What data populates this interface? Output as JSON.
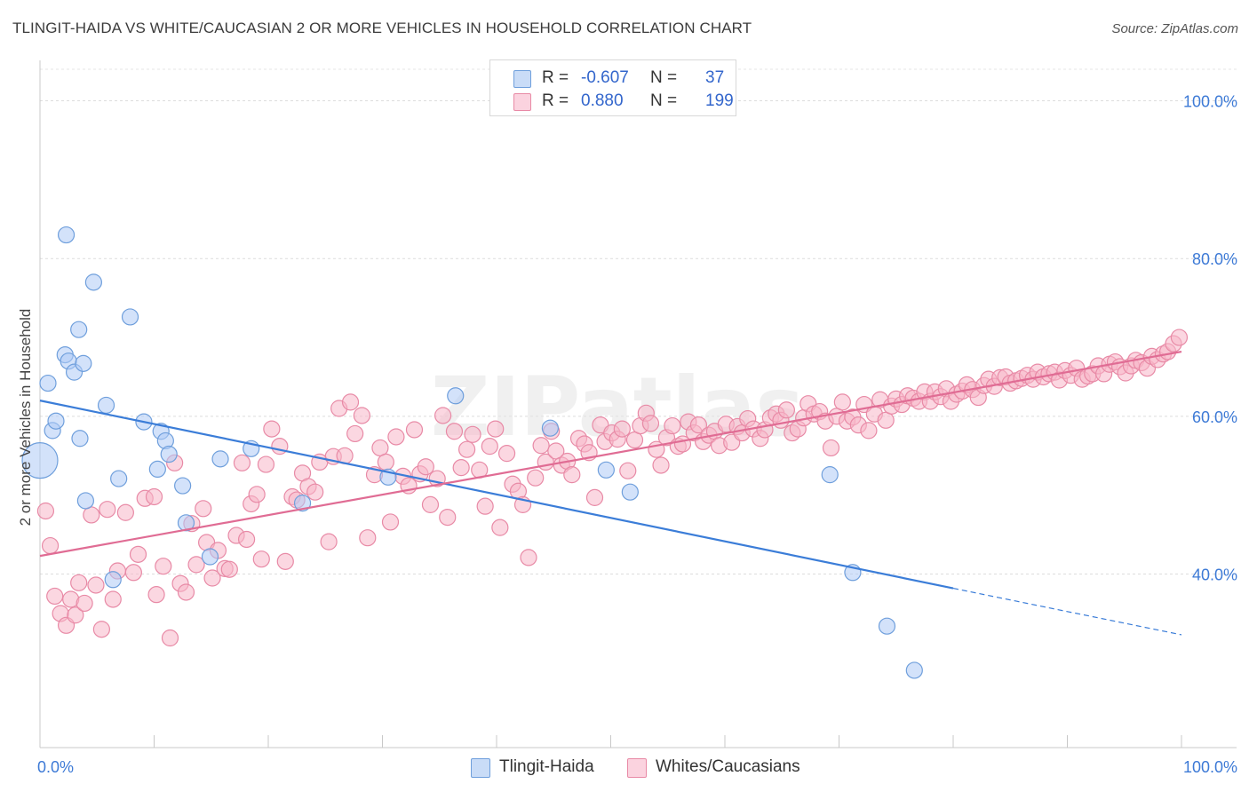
{
  "title": "TLINGIT-HAIDA VS WHITE/CAUCASIAN 2 OR MORE VEHICLES IN HOUSEHOLD CORRELATION CHART",
  "source": "Source: ZipAtlas.com",
  "watermark": "ZIPatlas",
  "legend": {
    "rows": [
      {
        "r_label": "R =",
        "r_value": "-0.607",
        "n_label": "N =",
        "n_value": "37",
        "color": "#aecbf5"
      },
      {
        "r_label": "R =",
        "r_value": "0.880",
        "n_label": "N =",
        "n_value": "199",
        "color": "#f7b6c8"
      }
    ]
  },
  "chart_data": {
    "type": "scatter",
    "xlabel": "",
    "ylabel": "2 or more Vehicles in Household",
    "xlim": [
      0,
      100
    ],
    "ylim": [
      18,
      104
    ],
    "x_tick_labels": [
      {
        "value": 0,
        "label": "0.0%"
      },
      {
        "value": 100,
        "label": "100.0%"
      }
    ],
    "y_tick_labels": [
      {
        "value": 40,
        "label": "40.0%"
      },
      {
        "value": 60,
        "label": "60.0%"
      },
      {
        "value": 80,
        "label": "80.0%"
      },
      {
        "value": 100,
        "label": "100.0%"
      }
    ],
    "grid": true,
    "legend_position": "bottom",
    "series": [
      {
        "name": "Tlingit-Haida",
        "color": "#aecbf5",
        "stroke": "#6f9fdc",
        "line_color": "#3b7dd8",
        "trend": {
          "x0": 0,
          "y0": 62.0,
          "x1": 80,
          "y1": 38.2,
          "dash_to": 100,
          "dash_y": 32.3
        },
        "points": [
          [
            0,
            54.4
          ],
          [
            0.7,
            64.2
          ],
          [
            1.1,
            58.2
          ],
          [
            1.4,
            59.4
          ],
          [
            2.2,
            67.8
          ],
          [
            2.3,
            83.0
          ],
          [
            2.5,
            67.0
          ],
          [
            3.0,
            65.6
          ],
          [
            3.4,
            71.0
          ],
          [
            3.5,
            57.2
          ],
          [
            3.8,
            66.7
          ],
          [
            4.0,
            49.3
          ],
          [
            4.7,
            77.0
          ],
          [
            5.8,
            61.4
          ],
          [
            6.9,
            52.1
          ],
          [
            7.9,
            72.6
          ],
          [
            9.1,
            59.3
          ],
          [
            10.3,
            53.3
          ],
          [
            10.6,
            58.1
          ],
          [
            11.0,
            56.9
          ],
          [
            11.3,
            55.2
          ],
          [
            12.5,
            51.2
          ],
          [
            12.8,
            46.5
          ],
          [
            14.9,
            42.2
          ],
          [
            15.8,
            54.6
          ],
          [
            18.5,
            55.9
          ],
          [
            23.0,
            49.0
          ],
          [
            30.5,
            52.3
          ],
          [
            36.4,
            62.6
          ],
          [
            44.7,
            58.5
          ],
          [
            49.6,
            53.2
          ],
          [
            51.7,
            50.4
          ],
          [
            69.2,
            52.6
          ],
          [
            71.2,
            40.2
          ],
          [
            74.2,
            33.4
          ],
          [
            76.6,
            27.8
          ],
          [
            6.4,
            39.3
          ]
        ]
      },
      {
        "name": "Whites/Caucasians",
        "color": "#f7b6c8",
        "stroke": "#e88aa6",
        "line_color": "#e06c94",
        "trend": {
          "x0": 0,
          "y0": 42.3,
          "x1": 100,
          "y1": 68.2
        },
        "points": [
          [
            0.5,
            48.0
          ],
          [
            0.9,
            43.6
          ],
          [
            1.3,
            37.2
          ],
          [
            1.8,
            35.0
          ],
          [
            2.3,
            33.5
          ],
          [
            2.7,
            36.8
          ],
          [
            3.1,
            34.8
          ],
          [
            3.4,
            38.9
          ],
          [
            3.9,
            36.3
          ],
          [
            4.5,
            47.5
          ],
          [
            4.9,
            38.6
          ],
          [
            5.4,
            33.0
          ],
          [
            5.9,
            48.2
          ],
          [
            6.4,
            36.8
          ],
          [
            6.8,
            40.4
          ],
          [
            7.5,
            47.8
          ],
          [
            8.2,
            40.2
          ],
          [
            8.6,
            42.5
          ],
          [
            9.2,
            49.6
          ],
          [
            10.0,
            49.8
          ],
          [
            10.2,
            37.4
          ],
          [
            10.8,
            41.0
          ],
          [
            11.4,
            31.9
          ],
          [
            11.8,
            54.1
          ],
          [
            12.3,
            38.8
          ],
          [
            12.8,
            37.7
          ],
          [
            13.3,
            46.4
          ],
          [
            13.7,
            41.2
          ],
          [
            14.3,
            48.3
          ],
          [
            14.6,
            44.0
          ],
          [
            15.1,
            39.5
          ],
          [
            15.6,
            43.0
          ],
          [
            16.2,
            40.7
          ],
          [
            16.6,
            40.6
          ],
          [
            17.2,
            44.9
          ],
          [
            17.7,
            54.1
          ],
          [
            18.1,
            44.4
          ],
          [
            18.5,
            48.9
          ],
          [
            19.0,
            50.1
          ],
          [
            19.4,
            41.9
          ],
          [
            19.8,
            53.9
          ],
          [
            20.3,
            58.4
          ],
          [
            21.0,
            56.2
          ],
          [
            21.5,
            41.6
          ],
          [
            22.1,
            49.8
          ],
          [
            22.5,
            49.4
          ],
          [
            23.0,
            52.8
          ],
          [
            23.5,
            51.1
          ],
          [
            24.1,
            50.4
          ],
          [
            24.5,
            54.2
          ],
          [
            25.3,
            44.1
          ],
          [
            25.7,
            54.9
          ],
          [
            26.2,
            61.0
          ],
          [
            26.7,
            55.0
          ],
          [
            27.2,
            61.8
          ],
          [
            27.6,
            57.8
          ],
          [
            28.2,
            60.1
          ],
          [
            28.7,
            44.6
          ],
          [
            29.3,
            52.6
          ],
          [
            29.8,
            56.0
          ],
          [
            30.3,
            54.2
          ],
          [
            30.7,
            46.6
          ],
          [
            31.2,
            57.4
          ],
          [
            31.8,
            52.4
          ],
          [
            32.3,
            51.2
          ],
          [
            32.8,
            58.3
          ],
          [
            33.3,
            52.7
          ],
          [
            33.8,
            53.6
          ],
          [
            34.2,
            48.8
          ],
          [
            34.8,
            52.1
          ],
          [
            35.3,
            60.1
          ],
          [
            35.7,
            47.2
          ],
          [
            36.3,
            58.1
          ],
          [
            36.9,
            53.5
          ],
          [
            37.4,
            55.8
          ],
          [
            37.9,
            57.7
          ],
          [
            38.5,
            53.2
          ],
          [
            39.0,
            48.6
          ],
          [
            39.4,
            56.2
          ],
          [
            39.9,
            58.4
          ],
          [
            40.3,
            45.9
          ],
          [
            40.9,
            55.3
          ],
          [
            41.4,
            51.4
          ],
          [
            41.9,
            50.5
          ],
          [
            42.3,
            48.8
          ],
          [
            42.8,
            42.1
          ],
          [
            43.4,
            52.2
          ],
          [
            43.9,
            56.3
          ],
          [
            44.3,
            54.2
          ],
          [
            44.8,
            58.1
          ],
          [
            45.2,
            55.6
          ],
          [
            45.7,
            53.8
          ],
          [
            46.2,
            54.3
          ],
          [
            46.6,
            52.6
          ],
          [
            47.2,
            57.2
          ],
          [
            47.7,
            56.5
          ],
          [
            48.1,
            55.4
          ],
          [
            48.6,
            49.7
          ],
          [
            49.1,
            58.9
          ],
          [
            49.5,
            56.8
          ],
          [
            50.1,
            57.9
          ],
          [
            50.6,
            57.1
          ],
          [
            51.0,
            58.4
          ],
          [
            51.5,
            53.1
          ],
          [
            52.1,
            57.0
          ],
          [
            52.6,
            58.8
          ],
          [
            53.1,
            60.4
          ],
          [
            53.5,
            59.1
          ],
          [
            54.0,
            55.8
          ],
          [
            54.4,
            53.8
          ],
          [
            54.9,
            57.3
          ],
          [
            55.4,
            58.8
          ],
          [
            55.9,
            56.2
          ],
          [
            56.3,
            56.5
          ],
          [
            56.8,
            59.3
          ],
          [
            57.3,
            57.9
          ],
          [
            57.7,
            58.9
          ],
          [
            58.1,
            56.8
          ],
          [
            58.6,
            57.6
          ],
          [
            59.1,
            58.1
          ],
          [
            59.5,
            56.3
          ],
          [
            60.1,
            59.0
          ],
          [
            60.6,
            56.7
          ],
          [
            61.1,
            58.7
          ],
          [
            61.5,
            57.9
          ],
          [
            62.0,
            59.7
          ],
          [
            62.5,
            58.4
          ],
          [
            63.1,
            57.2
          ],
          [
            63.5,
            58.3
          ],
          [
            64.0,
            59.8
          ],
          [
            64.5,
            60.3
          ],
          [
            64.9,
            59.5
          ],
          [
            65.4,
            60.8
          ],
          [
            65.9,
            57.9
          ],
          [
            66.4,
            58.4
          ],
          [
            66.9,
            59.8
          ],
          [
            67.3,
            61.6
          ],
          [
            67.8,
            60.3
          ],
          [
            68.3,
            60.6
          ],
          [
            68.8,
            59.4
          ],
          [
            69.3,
            56.0
          ],
          [
            69.8,
            60.0
          ],
          [
            70.3,
            61.8
          ],
          [
            70.7,
            59.4
          ],
          [
            71.2,
            59.9
          ],
          [
            71.7,
            58.9
          ],
          [
            72.2,
            61.5
          ],
          [
            72.6,
            58.2
          ],
          [
            73.1,
            60.3
          ],
          [
            73.6,
            62.1
          ],
          [
            74.1,
            59.5
          ],
          [
            74.6,
            61.3
          ],
          [
            75.0,
            62.2
          ],
          [
            75.5,
            61.5
          ],
          [
            76.0,
            62.6
          ],
          [
            76.5,
            62.3
          ],
          [
            77.0,
            61.9
          ],
          [
            77.5,
            63.1
          ],
          [
            78.0,
            61.9
          ],
          [
            78.4,
            63.1
          ],
          [
            78.9,
            62.5
          ],
          [
            79.4,
            63.5
          ],
          [
            79.8,
            61.9
          ],
          [
            80.3,
            62.8
          ],
          [
            80.8,
            63.2
          ],
          [
            81.2,
            64.0
          ],
          [
            81.7,
            63.4
          ],
          [
            82.2,
            62.4
          ],
          [
            82.7,
            63.9
          ],
          [
            83.1,
            64.7
          ],
          [
            83.6,
            63.8
          ],
          [
            84.1,
            64.9
          ],
          [
            84.6,
            65.0
          ],
          [
            85.0,
            64.2
          ],
          [
            85.5,
            64.5
          ],
          [
            86.0,
            64.8
          ],
          [
            86.5,
            65.2
          ],
          [
            87.0,
            64.7
          ],
          [
            87.4,
            65.6
          ],
          [
            87.9,
            65.0
          ],
          [
            88.4,
            65.4
          ],
          [
            88.9,
            65.6
          ],
          [
            89.3,
            64.6
          ],
          [
            89.8,
            65.8
          ],
          [
            90.3,
            65.2
          ],
          [
            90.8,
            66.1
          ],
          [
            91.3,
            64.7
          ],
          [
            91.8,
            65.1
          ],
          [
            92.2,
            65.4
          ],
          [
            92.7,
            66.4
          ],
          [
            93.2,
            65.4
          ],
          [
            93.7,
            66.6
          ],
          [
            94.2,
            66.9
          ],
          [
            94.6,
            66.3
          ],
          [
            95.1,
            65.5
          ],
          [
            95.6,
            66.4
          ],
          [
            96.0,
            67.1
          ],
          [
            96.5,
            66.8
          ],
          [
            97.0,
            66.1
          ],
          [
            97.4,
            67.6
          ],
          [
            97.9,
            67.2
          ],
          [
            98.4,
            67.9
          ],
          [
            98.8,
            68.2
          ],
          [
            99.3,
            69.2
          ],
          [
            99.8,
            70.0
          ]
        ]
      }
    ]
  }
}
